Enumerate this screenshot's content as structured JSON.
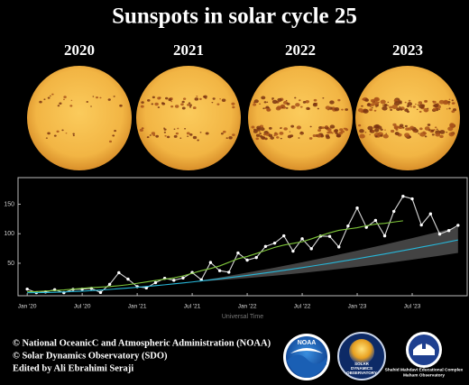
{
  "title": "Sunspots in solar cycle 25",
  "years": [
    "2020",
    "2021",
    "2022",
    "2023"
  ],
  "chart_data": {
    "type": "line",
    "x_axis_label": "Universal Time",
    "x": [
      "2020-01",
      "2020-02",
      "2020-03",
      "2020-04",
      "2020-05",
      "2020-06",
      "2020-07",
      "2020-08",
      "2020-09",
      "2020-10",
      "2020-11",
      "2020-12",
      "2021-01",
      "2021-02",
      "2021-03",
      "2021-04",
      "2021-05",
      "2021-06",
      "2021-07",
      "2021-08",
      "2021-09",
      "2021-10",
      "2021-11",
      "2021-12",
      "2022-01",
      "2022-02",
      "2022-03",
      "2022-04",
      "2022-05",
      "2022-06",
      "2022-07",
      "2022-08",
      "2022-09",
      "2022-10",
      "2022-11",
      "2022-12",
      "2023-01",
      "2023-02",
      "2023-03",
      "2023-04",
      "2023-05",
      "2023-06",
      "2023-07",
      "2023-08",
      "2023-09",
      "2023-10",
      "2023-11",
      "2023-12"
    ],
    "series": [
      {
        "color": "#d8d8d8",
        "markers": true,
        "values": [
          6.2,
          0.2,
          1.5,
          5.2,
          0.2,
          5.8,
          6.1,
          7.5,
          0.6,
          14.4,
          34.0,
          23.1,
          10.4,
          8.2,
          17.2,
          24.5,
          21.2,
          25.0,
          34.3,
          22.0,
          51.3,
          37.4,
          34.8,
          67.5,
          55.3,
          59.7,
          78.5,
          84.1,
          96.5,
          70.5,
          91.4,
          74.6,
          96.0,
          95.5,
          77.6,
          113.1,
          143.6,
          110.9,
          122.6,
          96.4,
          137.9,
          163.4,
          159.1,
          114.8,
          133.6,
          99.4,
          105.4,
          114.2
        ]
      },
      {
        "color": "#7ec63a",
        "markers": false,
        "values": [
          1.8,
          2.2,
          3.0,
          3.8,
          4.8,
          6.2,
          7.5,
          8.8,
          9.6,
          10.6,
          12.0,
          13.7,
          16.0,
          18.4,
          20.8,
          23.0,
          25.2,
          28.6,
          33.0,
          37.5,
          41.1,
          45.5,
          51.6,
          57.7,
          61.5,
          66.5,
          71.7,
          76.9,
          80.8,
          83.7,
          86.4,
          91.3,
          96.6,
          101.6,
          105.8,
          108.0,
          110.2,
          113.5,
          116.3,
          117.6,
          119.8,
          121.9,
          null,
          null,
          null,
          null,
          null,
          null
        ]
      },
      {
        "color": "#27b6d8",
        "markers": false,
        "values": [
          0,
          0.2,
          0.5,
          0.8,
          1.4,
          2.1,
          2.8,
          3.7,
          4.7,
          5.7,
          6.9,
          8.1,
          9.3,
          10.7,
          12.1,
          13.5,
          15.1,
          16.7,
          18.3,
          20.1,
          21.8,
          23.6,
          25.6,
          27.5,
          29.5,
          31.6,
          33.7,
          35.8,
          38.1,
          40.3,
          42.6,
          45,
          47.5,
          49.9,
          52.5,
          55,
          57.6,
          60.3,
          63,
          65.7,
          68.6,
          71.4,
          74.3,
          77.3,
          80.2,
          83.2,
          86.3,
          89.5
        ]
      }
    ],
    "band": {
      "color": "#5a5a5a",
      "x": [
        "2021-07",
        "2021-10",
        "2022-01",
        "2022-04",
        "2022-07",
        "2022-10",
        "2023-01",
        "2023-04",
        "2023-07",
        "2023-10",
        "2023-12"
      ],
      "upper": [
        18.3,
        25.9,
        34.1,
        42.6,
        51.7,
        61.3,
        71.3,
        81.7,
        92.5,
        103.7,
        111.5
      ],
      "lower": [
        18.3,
        21.3,
        24.9,
        29.0,
        33.5,
        38.5,
        43.9,
        49.7,
        56.1,
        62.7,
        67.5
      ]
    },
    "xlim": [
      "2019-12",
      "2024-01"
    ],
    "xticks": [
      {
        "value": "2020-01",
        "label": "Jan '20"
      },
      {
        "value": "2020-07",
        "label": "Jul '20"
      },
      {
        "value": "2021-01",
        "label": "Jan '21"
      },
      {
        "value": "2021-07",
        "label": "Jul '21"
      },
      {
        "value": "2022-01",
        "label": "Jan '22"
      },
      {
        "value": "2022-07",
        "label": "Jul '22"
      },
      {
        "value": "2023-01",
        "label": "Jan '23"
      },
      {
        "value": "2023-07",
        "label": "Jul '23"
      }
    ],
    "ylim": [
      -5,
      195
    ],
    "yticks": [
      50,
      100,
      150
    ]
  },
  "credits": [
    "© National OceanicC and Atmospheric Administration (NOAA)",
    "© Solar Dynamics Observatory (SDO)",
    "Edited by Ali Ebrahimi Seraji"
  ],
  "logos": {
    "noaa": "NOAA",
    "sdo": [
      "SOLAR",
      "DYNAMICS",
      "OBSERVATORY"
    ],
    "observatory": [
      "Shahid Mahdavi Educational Complex",
      "Maham Observatory"
    ]
  }
}
